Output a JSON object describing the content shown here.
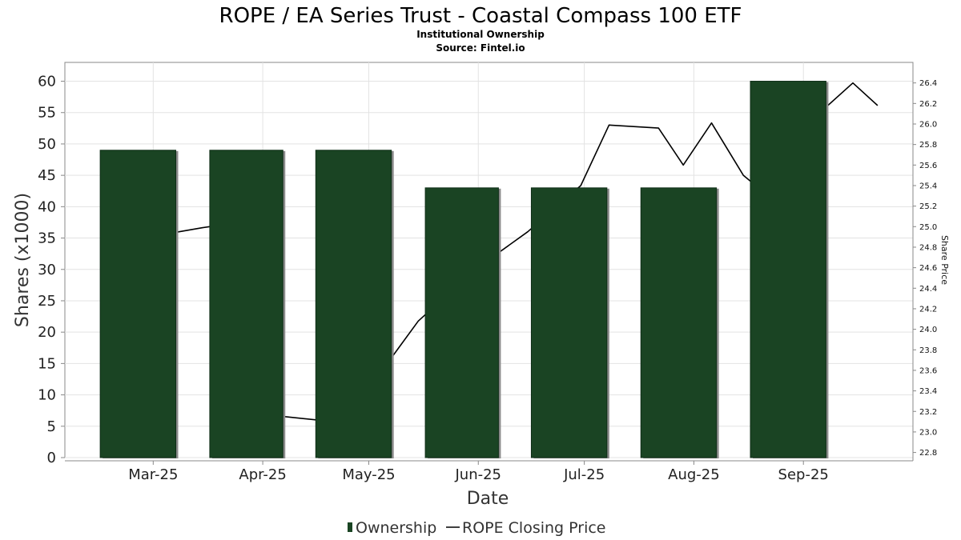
{
  "chart_data": {
    "type": "bar",
    "title": "ROPE / EA Series Trust - Coastal Compass 100 ETF",
    "subtitle_lines": [
      "Institutional Ownership",
      "Source: Fintel.io"
    ],
    "xlabel": "Date",
    "ylabel": "Shares (x1000)",
    "y2label": "Share Price",
    "categories": [
      "Mar-25",
      "Apr-25",
      "May-25",
      "Jun-25",
      "Jul-25",
      "Aug-25",
      "Sep-25"
    ],
    "series": [
      {
        "name": "Ownership",
        "type": "bar",
        "axis": "left",
        "color": "#1a4423",
        "values": [
          49,
          49,
          49,
          43,
          43,
          43,
          60
        ]
      },
      {
        "name": "ROPE Closing Price",
        "type": "line",
        "axis": "right",
        "color": "#000000",
        "points": [
          {
            "x": "2025-02-28",
            "y": 24.9
          },
          {
            "x": "2025-03-15",
            "y": 24.99
          },
          {
            "x": "2025-03-31",
            "y": 25.07
          },
          {
            "x": "2025-04-07",
            "y": 23.15
          },
          {
            "x": "2025-04-21",
            "y": 23.1
          },
          {
            "x": "2025-05-01",
            "y": 23.42
          },
          {
            "x": "2025-05-15",
            "y": 24.08
          },
          {
            "x": "2025-05-31",
            "y": 24.58
          },
          {
            "x": "2025-06-15",
            "y": 24.95
          },
          {
            "x": "2025-06-30",
            "y": 25.4
          },
          {
            "x": "2025-07-08",
            "y": 25.99
          },
          {
            "x": "2025-07-22",
            "y": 25.96
          },
          {
            "x": "2025-07-29",
            "y": 25.6
          },
          {
            "x": "2025-08-06",
            "y": 26.01
          },
          {
            "x": "2025-08-15",
            "y": 25.5
          },
          {
            "x": "2025-08-22",
            "y": 25.3
          },
          {
            "x": "2025-08-28",
            "y": 25.85
          },
          {
            "x": "2025-09-05",
            "y": 26.09
          },
          {
            "x": "2025-09-15",
            "y": 26.4
          },
          {
            "x": "2025-09-22",
            "y": 26.18
          }
        ]
      }
    ],
    "yticks": [
      0,
      5,
      10,
      15,
      20,
      25,
      30,
      35,
      40,
      45,
      50,
      55,
      60
    ],
    "ylim": [
      0,
      63
    ],
    "y2ticks": [
      "22.8",
      "23.0",
      "23.2",
      "23.4",
      "23.6",
      "23.8",
      "24.0",
      "24.2",
      "24.4",
      "24.6",
      "24.8",
      "25.0",
      "25.2",
      "25.4",
      "25.6",
      "25.8",
      "26.0",
      "26.2",
      "26.4"
    ],
    "y2lim": [
      22.75,
      26.6
    ],
    "xlim": [
      "2025-02-04",
      "2025-10-02"
    ],
    "xtick_dates": [
      "2025-03-01",
      "2025-04-01",
      "2025-05-01",
      "2025-06-01",
      "2025-07-01",
      "2025-08-01",
      "2025-09-01"
    ],
    "grid": true,
    "legend": "bottom-center"
  }
}
